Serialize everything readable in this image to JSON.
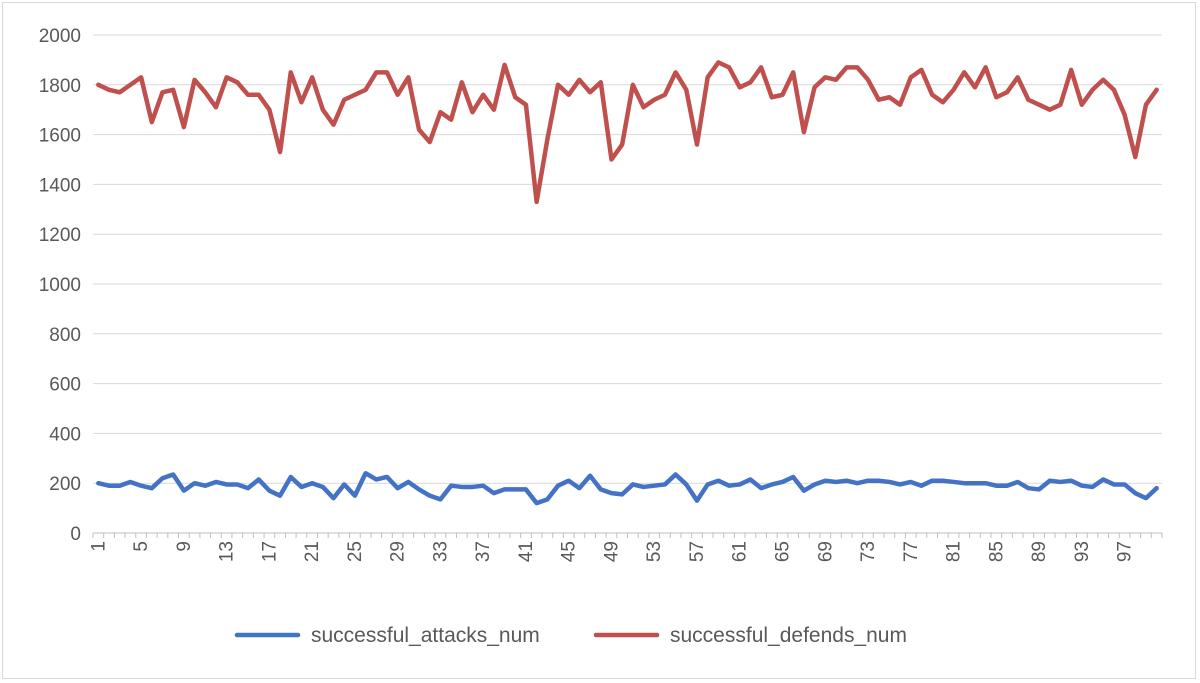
{
  "chart_data": {
    "type": "line",
    "title": "",
    "xlabel": "",
    "ylabel": "",
    "ylim": [
      0,
      2000
    ],
    "yticks": [
      0,
      200,
      400,
      600,
      800,
      1000,
      1200,
      1400,
      1600,
      1800,
      2000
    ],
    "x": [
      1,
      2,
      3,
      4,
      5,
      6,
      7,
      8,
      9,
      10,
      11,
      12,
      13,
      14,
      15,
      16,
      17,
      18,
      19,
      20,
      21,
      22,
      23,
      24,
      25,
      26,
      27,
      28,
      29,
      30,
      31,
      32,
      33,
      34,
      35,
      36,
      37,
      38,
      39,
      40,
      41,
      42,
      43,
      44,
      45,
      46,
      47,
      48,
      49,
      50,
      51,
      52,
      53,
      54,
      55,
      56,
      57,
      58,
      59,
      60,
      61,
      62,
      63,
      64,
      65,
      66,
      67,
      68,
      69,
      70,
      71,
      72,
      73,
      74,
      75,
      76,
      77,
      78,
      79,
      80,
      81,
      82,
      83,
      84,
      85,
      86,
      87,
      88,
      89,
      90,
      91,
      92,
      93,
      94,
      95,
      96,
      97,
      98,
      99,
      100
    ],
    "xtick_labels": [
      "1",
      "5",
      "9",
      "13",
      "17",
      "21",
      "25",
      "29",
      "33",
      "37",
      "41",
      "45",
      "49",
      "53",
      "57",
      "61",
      "65",
      "69",
      "73",
      "77",
      "81",
      "85",
      "89",
      "93",
      "97"
    ],
    "grid": true,
    "legend_position": "bottom",
    "series": [
      {
        "name": "successful_attacks_num",
        "color": "#4472c4",
        "values": [
          200,
          190,
          190,
          205,
          190,
          180,
          220,
          235,
          170,
          200,
          190,
          205,
          195,
          195,
          180,
          215,
          170,
          150,
          225,
          185,
          200,
          185,
          140,
          195,
          150,
          240,
          215,
          225,
          180,
          205,
          175,
          150,
          135,
          190,
          185,
          185,
          190,
          160,
          175,
          175,
          175,
          120,
          135,
          190,
          210,
          180,
          230,
          175,
          160,
          155,
          195,
          185,
          190,
          195,
          235,
          195,
          130,
          195,
          210,
          190,
          195,
          215,
          180,
          195,
          205,
          225,
          170,
          195,
          210,
          205,
          210,
          200,
          210,
          210,
          205,
          195,
          205,
          190,
          210,
          210,
          205,
          200,
          200,
          200,
          190,
          190,
          205,
          180,
          175,
          210,
          205,
          210,
          190,
          185,
          215,
          195,
          195,
          160,
          140,
          180
        ]
      },
      {
        "name": "successful_defends_num",
        "color": "#c0504d",
        "values": [
          1800,
          1780,
          1770,
          1800,
          1830,
          1650,
          1770,
          1780,
          1630,
          1820,
          1770,
          1710,
          1830,
          1810,
          1760,
          1760,
          1700,
          1530,
          1850,
          1730,
          1830,
          1700,
          1640,
          1740,
          1760,
          1780,
          1850,
          1850,
          1760,
          1830,
          1620,
          1570,
          1690,
          1660,
          1810,
          1690,
          1760,
          1700,
          1880,
          1750,
          1720,
          1330,
          1580,
          1800,
          1760,
          1820,
          1770,
          1810,
          1500,
          1560,
          1800,
          1710,
          1740,
          1760,
          1850,
          1780,
          1560,
          1830,
          1890,
          1870,
          1790,
          1810,
          1870,
          1750,
          1760,
          1850,
          1610,
          1790,
          1830,
          1820,
          1870,
          1870,
          1820,
          1740,
          1750,
          1720,
          1830,
          1860,
          1760,
          1730,
          1780,
          1850,
          1790,
          1870,
          1750,
          1770,
          1830,
          1740,
          1720,
          1700,
          1720,
          1860,
          1720,
          1780,
          1820,
          1780,
          1680,
          1510,
          1720,
          1780
        ]
      }
    ]
  }
}
